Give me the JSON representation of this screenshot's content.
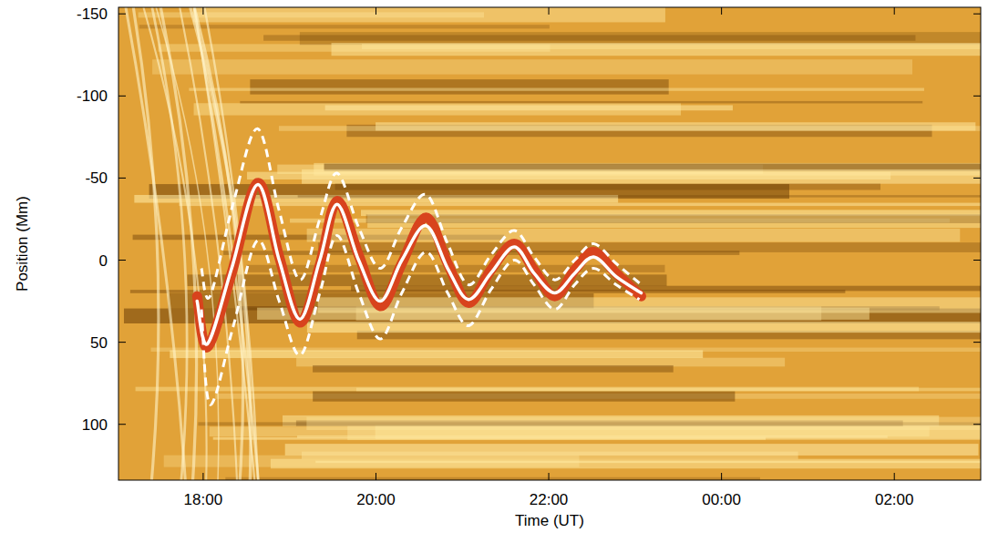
{
  "chart_data": {
    "type": "line",
    "x_label": "Time (UT)",
    "y_label": "Position (Mm)",
    "xlim": [
      17.02,
      27.0
    ],
    "xticks": [
      {
        "value": 18,
        "label": "18:00"
      },
      {
        "value": 20,
        "label": "20:00"
      },
      {
        "value": 22,
        "label": "22:00"
      },
      {
        "value": 24,
        "label": "00:00"
      },
      {
        "value": 26,
        "label": "02:00"
      }
    ],
    "ylim": [
      -154,
      134
    ],
    "yticks": [
      -150,
      -100,
      -50,
      0,
      50,
      100
    ],
    "series": [
      {
        "color": "#d8431d",
        "line_style": "solid",
        "x": [
          17.93,
          18.05,
          18.33,
          18.63,
          18.88,
          19.12,
          19.35,
          19.55,
          19.8,
          20.05,
          20.3,
          20.58,
          20.83,
          21.07,
          21.33,
          21.6,
          21.83,
          22.07,
          22.3,
          22.52,
          22.78,
          23.07
        ],
        "values": [
          22,
          53,
          8,
          -47,
          -2,
          38,
          3,
          -36,
          -3,
          28,
          2,
          -26,
          2,
          26,
          6,
          -10,
          6,
          22,
          6,
          -5,
          8,
          22
        ]
      },
      {
        "color": "#ffffff",
        "line_style": "dashed",
        "x": [
          17.98,
          18.08,
          18.35,
          18.63,
          18.88,
          19.12,
          19.35,
          19.55,
          19.8,
          20.05,
          20.3,
          20.58,
          20.83,
          21.07,
          21.33,
          21.6,
          21.83,
          22.07,
          22.3,
          22.52,
          22.78,
          23.05
        ],
        "values": [
          5,
          22,
          -35,
          -80,
          -30,
          12,
          -25,
          -53,
          -20,
          5,
          -20,
          -40,
          -10,
          15,
          -3,
          -18,
          -2,
          12,
          0,
          -10,
          2,
          14
        ]
      },
      {
        "color": "#ffffff",
        "line_style": "dashed",
        "x": [
          17.98,
          18.08,
          18.35,
          18.63,
          18.88,
          19.12,
          19.35,
          19.55,
          19.8,
          20.05,
          20.3,
          20.58,
          20.83,
          21.07,
          21.33,
          21.6,
          21.83,
          22.07,
          22.3,
          22.52,
          22.78,
          23.05
        ],
        "values": [
          30,
          88,
          40,
          -12,
          25,
          58,
          20,
          -15,
          20,
          48,
          20,
          -5,
          20,
          40,
          18,
          0,
          15,
          30,
          15,
          5,
          15,
          24
        ]
      },
      {
        "color": "#ffffff",
        "line_style": "solid",
        "x": [
          17.93,
          18.05,
          18.33,
          18.63,
          18.88,
          19.12,
          19.35,
          19.55,
          19.8,
          20.05,
          20.3,
          20.58,
          20.83,
          21.07,
          21.33,
          21.6,
          21.83,
          22.07,
          22.3,
          22.52,
          22.78,
          23.07
        ],
        "values": [
          25,
          51,
          5,
          -46,
          0,
          36,
          0,
          -34,
          0,
          25,
          0,
          -21,
          5,
          24,
          8,
          -8,
          8,
          20,
          8,
          -2,
          10,
          20
        ]
      }
    ]
  }
}
